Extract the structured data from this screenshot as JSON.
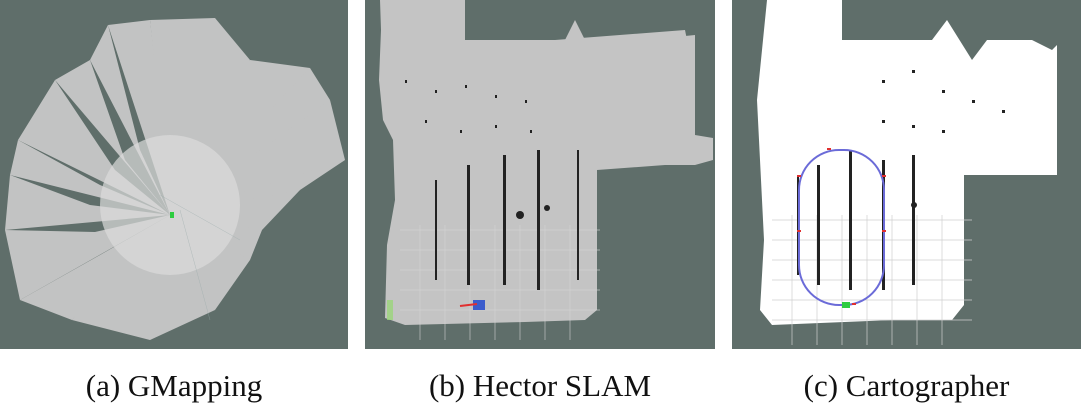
{
  "figure": {
    "panels": [
      {
        "id": "a",
        "caption": "(a) GMapping",
        "method": "GMapping"
      },
      {
        "id": "b",
        "caption": "(b) Hector SLAM",
        "method": "Hector SLAM"
      },
      {
        "id": "c",
        "caption": "(c) Cartographer",
        "method": "Cartographer"
      }
    ],
    "colors": {
      "background": "#5f6e6a",
      "gmapping_map": "#c8c8c8",
      "hector_map": "#c4c4c4",
      "cartographer_map": "#ffffff",
      "obstacle": "#222222",
      "trajectory": "#6b6bd8",
      "robot": "#2ecc40"
    }
  }
}
